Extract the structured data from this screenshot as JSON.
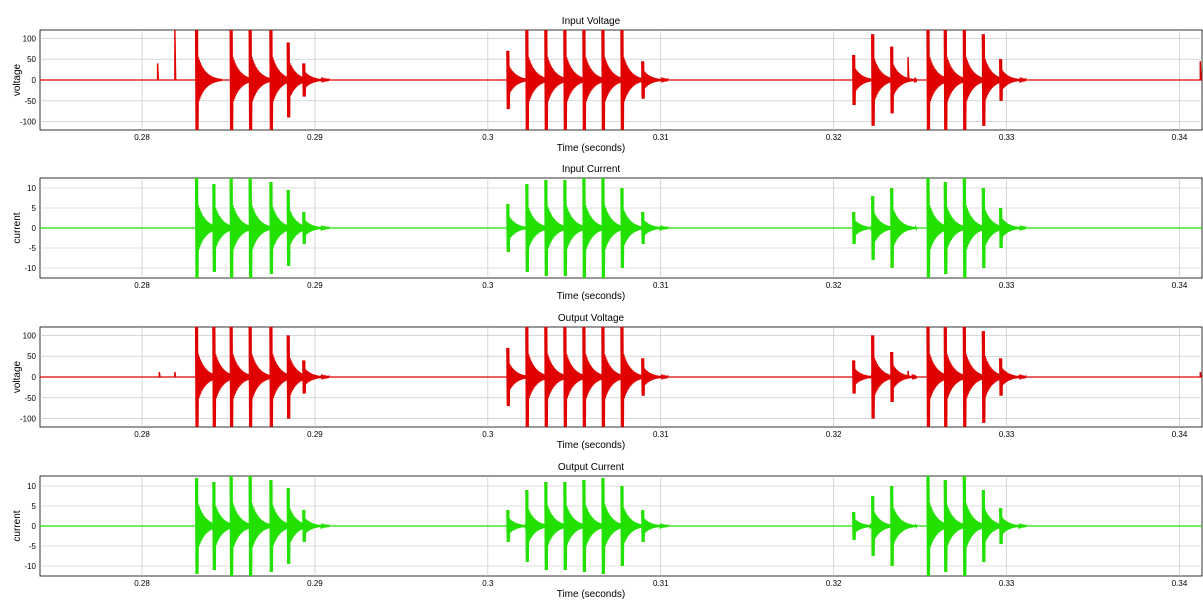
{
  "chart_data": [
    {
      "type": "line",
      "title": "Input Voltage",
      "xlabel": "Time (seconds)",
      "ylabel": "voltage",
      "xlim": [
        0.2741,
        0.3413
      ],
      "ylim": [
        -120,
        120
      ],
      "xticks": [
        0.28,
        0.29,
        0.3,
        0.31,
        0.32,
        0.33,
        0.34
      ],
      "xtick_labels": [
        "0.28",
        "0.29",
        "0.3",
        "0.31",
        "0.32",
        "0.33",
        "0.34"
      ],
      "yticks": [
        100,
        50,
        0,
        -50,
        -100
      ],
      "ytick_labels": [
        "100",
        "50",
        "0",
        "-50",
        "-100"
      ],
      "grid": true,
      "color": "#e00000",
      "series": [
        {
          "bursts": [
            {
              "t": 0.2809,
              "amp": 40,
              "kind": "spike"
            },
            {
              "t": 0.2819,
              "amp": 120,
              "kind": "spike"
            },
            {
              "t": 0.2831,
              "amp": 120,
              "kind": "pulse"
            },
            {
              "t": 0.2851,
              "amp": 120,
              "kind": "pulse"
            },
            {
              "t": 0.2862,
              "amp": 120,
              "kind": "pulse"
            },
            {
              "t": 0.2874,
              "amp": 120,
              "kind": "pulse"
            },
            {
              "t": 0.2884,
              "amp": 90,
              "kind": "pulse"
            },
            {
              "t": 0.2893,
              "amp": 40,
              "kind": "pulse"
            },
            {
              "t": 0.3011,
              "amp": 70,
              "kind": "pulse"
            },
            {
              "t": 0.3022,
              "amp": 120,
              "kind": "pulse"
            },
            {
              "t": 0.3033,
              "amp": 120,
              "kind": "pulse"
            },
            {
              "t": 0.3044,
              "amp": 120,
              "kind": "pulse"
            },
            {
              "t": 0.3055,
              "amp": 120,
              "kind": "pulse"
            },
            {
              "t": 0.3066,
              "amp": 120,
              "kind": "pulse"
            },
            {
              "t": 0.3077,
              "amp": 120,
              "kind": "pulse"
            },
            {
              "t": 0.3089,
              "amp": 45,
              "kind": "pulse"
            },
            {
              "t": 0.3211,
              "amp": 60,
              "kind": "pulse"
            },
            {
              "t": 0.3222,
              "amp": 110,
              "kind": "pulse"
            },
            {
              "t": 0.3233,
              "amp": 80,
              "kind": "pulse"
            },
            {
              "t": 0.3243,
              "amp": 55,
              "kind": "spike"
            },
            {
              "t": 0.3254,
              "amp": 120,
              "kind": "pulse"
            },
            {
              "t": 0.3264,
              "amp": 120,
              "kind": "pulse"
            },
            {
              "t": 0.3275,
              "amp": 120,
              "kind": "pulse"
            },
            {
              "t": 0.3286,
              "amp": 110,
              "kind": "pulse"
            },
            {
              "t": 0.3296,
              "amp": 50,
              "kind": "pulse"
            },
            {
              "t": 0.3412,
              "amp": 45,
              "kind": "spike"
            }
          ]
        }
      ]
    },
    {
      "type": "line",
      "title": "Input Current",
      "xlabel": "Time (seconds)",
      "ylabel": "current",
      "xlim": [
        0.2741,
        0.3413
      ],
      "ylim": [
        -12.5,
        12.5
      ],
      "xticks": [
        0.28,
        0.29,
        0.3,
        0.31,
        0.32,
        0.33,
        0.34
      ],
      "xtick_labels": [
        "0.28",
        "0.29",
        "0.3",
        "0.31",
        "0.32",
        "0.33",
        "0.34"
      ],
      "yticks": [
        10,
        5,
        0,
        -5,
        -10
      ],
      "ytick_labels": [
        "10",
        "5",
        "0",
        "-5",
        "-10"
      ],
      "grid": true,
      "color": "#22e000",
      "series": [
        {
          "bursts": [
            {
              "t": 0.2831,
              "amp": 12.5,
              "kind": "pulse"
            },
            {
              "t": 0.2841,
              "amp": 11,
              "kind": "pulse"
            },
            {
              "t": 0.2851,
              "amp": 12.5,
              "kind": "pulse"
            },
            {
              "t": 0.2862,
              "amp": 12.5,
              "kind": "pulse"
            },
            {
              "t": 0.2874,
              "amp": 11.5,
              "kind": "pulse"
            },
            {
              "t": 0.2884,
              "amp": 9.5,
              "kind": "pulse"
            },
            {
              "t": 0.2893,
              "amp": 4,
              "kind": "pulse"
            },
            {
              "t": 0.3011,
              "amp": 6,
              "kind": "pulse"
            },
            {
              "t": 0.3022,
              "amp": 11,
              "kind": "pulse"
            },
            {
              "t": 0.3033,
              "amp": 12,
              "kind": "pulse"
            },
            {
              "t": 0.3044,
              "amp": 12,
              "kind": "pulse"
            },
            {
              "t": 0.3055,
              "amp": 12.5,
              "kind": "pulse"
            },
            {
              "t": 0.3066,
              "amp": 12.5,
              "kind": "pulse"
            },
            {
              "t": 0.3077,
              "amp": 10,
              "kind": "pulse"
            },
            {
              "t": 0.3089,
              "amp": 4,
              "kind": "pulse"
            },
            {
              "t": 0.3211,
              "amp": 4,
              "kind": "pulse"
            },
            {
              "t": 0.3222,
              "amp": 8,
              "kind": "pulse"
            },
            {
              "t": 0.3233,
              "amp": 10,
              "kind": "pulse"
            },
            {
              "t": 0.3254,
              "amp": 12.5,
              "kind": "pulse"
            },
            {
              "t": 0.3264,
              "amp": 11.5,
              "kind": "pulse"
            },
            {
              "t": 0.3275,
              "amp": 12.5,
              "kind": "pulse"
            },
            {
              "t": 0.3286,
              "amp": 10,
              "kind": "pulse"
            },
            {
              "t": 0.3296,
              "amp": 5,
              "kind": "pulse"
            }
          ]
        }
      ]
    },
    {
      "type": "line",
      "title": "Output Voltage",
      "xlabel": "Time (seconds)",
      "ylabel": "voltage",
      "xlim": [
        0.2741,
        0.3413
      ],
      "ylim": [
        -120,
        120
      ],
      "xticks": [
        0.28,
        0.29,
        0.3,
        0.31,
        0.32,
        0.33,
        0.34
      ],
      "xtick_labels": [
        "0.28",
        "0.29",
        "0.3",
        "0.31",
        "0.32",
        "0.33",
        "0.34"
      ],
      "yticks": [
        100,
        50,
        0,
        -50,
        -100
      ],
      "ytick_labels": [
        "100",
        "50",
        "0",
        "-50",
        "-100"
      ],
      "grid": true,
      "color": "#e00000",
      "series": [
        {
          "bursts": [
            {
              "t": 0.281,
              "amp": 12,
              "kind": "spike"
            },
            {
              "t": 0.2819,
              "amp": 12,
              "kind": "spike"
            },
            {
              "t": 0.2831,
              "amp": 120,
              "kind": "pulse"
            },
            {
              "t": 0.2841,
              "amp": 120,
              "kind": "pulse"
            },
            {
              "t": 0.2851,
              "amp": 120,
              "kind": "pulse"
            },
            {
              "t": 0.2862,
              "amp": 120,
              "kind": "pulse"
            },
            {
              "t": 0.2874,
              "amp": 120,
              "kind": "pulse"
            },
            {
              "t": 0.2884,
              "amp": 100,
              "kind": "pulse"
            },
            {
              "t": 0.2893,
              "amp": 40,
              "kind": "pulse"
            },
            {
              "t": 0.3011,
              "amp": 70,
              "kind": "pulse"
            },
            {
              "t": 0.3022,
              "amp": 120,
              "kind": "pulse"
            },
            {
              "t": 0.3033,
              "amp": 120,
              "kind": "pulse"
            },
            {
              "t": 0.3044,
              "amp": 120,
              "kind": "pulse"
            },
            {
              "t": 0.3055,
              "amp": 120,
              "kind": "pulse"
            },
            {
              "t": 0.3066,
              "amp": 120,
              "kind": "pulse"
            },
            {
              "t": 0.3077,
              "amp": 120,
              "kind": "pulse"
            },
            {
              "t": 0.3089,
              "amp": 45,
              "kind": "pulse"
            },
            {
              "t": 0.3211,
              "amp": 40,
              "kind": "pulse"
            },
            {
              "t": 0.3222,
              "amp": 100,
              "kind": "pulse"
            },
            {
              "t": 0.3233,
              "amp": 60,
              "kind": "pulse"
            },
            {
              "t": 0.3243,
              "amp": 15,
              "kind": "spike"
            },
            {
              "t": 0.3254,
              "amp": 120,
              "kind": "pulse"
            },
            {
              "t": 0.3264,
              "amp": 120,
              "kind": "pulse"
            },
            {
              "t": 0.3275,
              "amp": 120,
              "kind": "pulse"
            },
            {
              "t": 0.3286,
              "amp": 110,
              "kind": "pulse"
            },
            {
              "t": 0.3296,
              "amp": 45,
              "kind": "pulse"
            },
            {
              "t": 0.3412,
              "amp": 12,
              "kind": "spike"
            }
          ]
        }
      ]
    },
    {
      "type": "line",
      "title": "Output Current",
      "xlabel": "Time (seconds)",
      "ylabel": "current",
      "xlim": [
        0.2741,
        0.3413
      ],
      "ylim": [
        -12.5,
        12.5
      ],
      "xticks": [
        0.28,
        0.29,
        0.3,
        0.31,
        0.32,
        0.33,
        0.34
      ],
      "xtick_labels": [
        "0.28",
        "0.29",
        "0.3",
        "0.31",
        "0.32",
        "0.33",
        "0.34"
      ],
      "yticks": [
        10,
        5,
        0,
        -5,
        -10
      ],
      "ytick_labels": [
        "10",
        "5",
        "0",
        "-5",
        "-10"
      ],
      "grid": true,
      "color": "#22e000",
      "series": [
        {
          "bursts": [
            {
              "t": 0.2831,
              "amp": 12,
              "kind": "pulse"
            },
            {
              "t": 0.2841,
              "amp": 11,
              "kind": "pulse"
            },
            {
              "t": 0.2851,
              "amp": 12.5,
              "kind": "pulse"
            },
            {
              "t": 0.2862,
              "amp": 12.5,
              "kind": "pulse"
            },
            {
              "t": 0.2874,
              "amp": 11.5,
              "kind": "pulse"
            },
            {
              "t": 0.2884,
              "amp": 9.5,
              "kind": "pulse"
            },
            {
              "t": 0.2893,
              "amp": 4,
              "kind": "pulse"
            },
            {
              "t": 0.3011,
              "amp": 4,
              "kind": "pulse"
            },
            {
              "t": 0.3022,
              "amp": 9,
              "kind": "pulse"
            },
            {
              "t": 0.3033,
              "amp": 11,
              "kind": "pulse"
            },
            {
              "t": 0.3044,
              "amp": 11,
              "kind": "pulse"
            },
            {
              "t": 0.3055,
              "amp": 11.5,
              "kind": "pulse"
            },
            {
              "t": 0.3066,
              "amp": 12,
              "kind": "pulse"
            },
            {
              "t": 0.3077,
              "amp": 10,
              "kind": "pulse"
            },
            {
              "t": 0.3089,
              "amp": 4,
              "kind": "pulse"
            },
            {
              "t": 0.3211,
              "amp": 3.5,
              "kind": "pulse"
            },
            {
              "t": 0.3222,
              "amp": 7.5,
              "kind": "pulse"
            },
            {
              "t": 0.3233,
              "amp": 10,
              "kind": "pulse"
            },
            {
              "t": 0.3254,
              "amp": 12.5,
              "kind": "pulse"
            },
            {
              "t": 0.3264,
              "amp": 11.5,
              "kind": "pulse"
            },
            {
              "t": 0.3275,
              "amp": 12.5,
              "kind": "pulse"
            },
            {
              "t": 0.3286,
              "amp": 9,
              "kind": "pulse"
            },
            {
              "t": 0.3296,
              "amp": 4.5,
              "kind": "pulse"
            }
          ]
        }
      ]
    }
  ]
}
